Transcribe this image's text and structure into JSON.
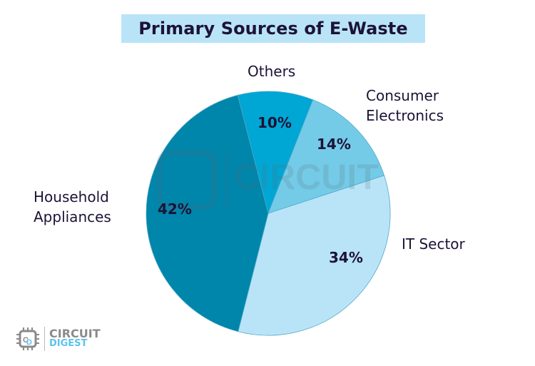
{
  "header": {
    "title": "Primary Sources of E-Waste"
  },
  "chart_data": {
    "type": "pie",
    "title": "Primary Sources of E-Waste",
    "categories": [
      "Others",
      "Consumer Electronics",
      "IT Sector",
      "Household Appliances"
    ],
    "values": [
      10,
      14,
      34,
      42
    ],
    "unit": "%",
    "data_labels": [
      "10%",
      "14%",
      "34%",
      "42%"
    ],
    "colors": [
      "#00a7d4",
      "#74cbe8",
      "#b9e4f8",
      "#0085ab"
    ],
    "legend": "none (labels placed next to slices)",
    "start_angle_deg_clockwise_from_top": -14.5
  },
  "slices": [
    {
      "name": "Others",
      "label": "Others",
      "pct": "10%"
    },
    {
      "name": "Consumer Electronics",
      "label_line1": "Consumer",
      "label_line2": "Electronics",
      "pct": "14%"
    },
    {
      "name": "IT Sector",
      "label": "IT Sector",
      "pct": "34%"
    },
    {
      "name": "Household Appliances",
      "label_line1": "Household",
      "label_line2": "Appliances",
      "pct": "42%"
    }
  ],
  "branding": {
    "line1": "CIRCUIT",
    "line2": "DIGEST",
    "watermark": "CIRCUIT"
  }
}
